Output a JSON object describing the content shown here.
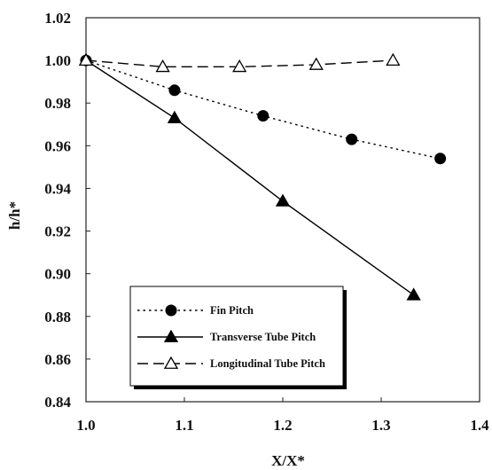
{
  "chart_data": {
    "type": "line",
    "xlabel": "X/X*",
    "ylabel": "h/h*",
    "xlim": [
      1.0,
      1.4
    ],
    "ylim": [
      0.84,
      1.02
    ],
    "x_ticks": [
      "1.0",
      "1.1",
      "1.2",
      "1.3",
      "1.4"
    ],
    "y_ticks": [
      "0.84",
      "0.86",
      "0.88",
      "0.90",
      "0.92",
      "0.94",
      "0.96",
      "0.98",
      "1.00",
      "1.02"
    ],
    "grid": false,
    "legend_position": "bottom-left",
    "series": [
      {
        "name": "Fin Pitch",
        "marker": "filled-circle",
        "line_style": "dotted",
        "x": [
          1.0,
          1.09,
          1.18,
          1.27,
          1.36
        ],
        "y": [
          1.0,
          0.986,
          0.974,
          0.963,
          0.954
        ]
      },
      {
        "name": "Transverse Tube Pitch",
        "marker": "filled-triangle",
        "line_style": "solid",
        "x": [
          1.0,
          1.09,
          1.2,
          1.333
        ],
        "y": [
          1.0,
          0.973,
          0.934,
          0.89
        ]
      },
      {
        "name": "Longitudinal Tube Pitch",
        "marker": "open-triangle",
        "line_style": "dashed",
        "x": [
          1.0,
          1.078,
          1.156,
          1.234,
          1.312
        ],
        "y": [
          1.0,
          0.997,
          0.997,
          0.998,
          1.0
        ]
      }
    ]
  }
}
